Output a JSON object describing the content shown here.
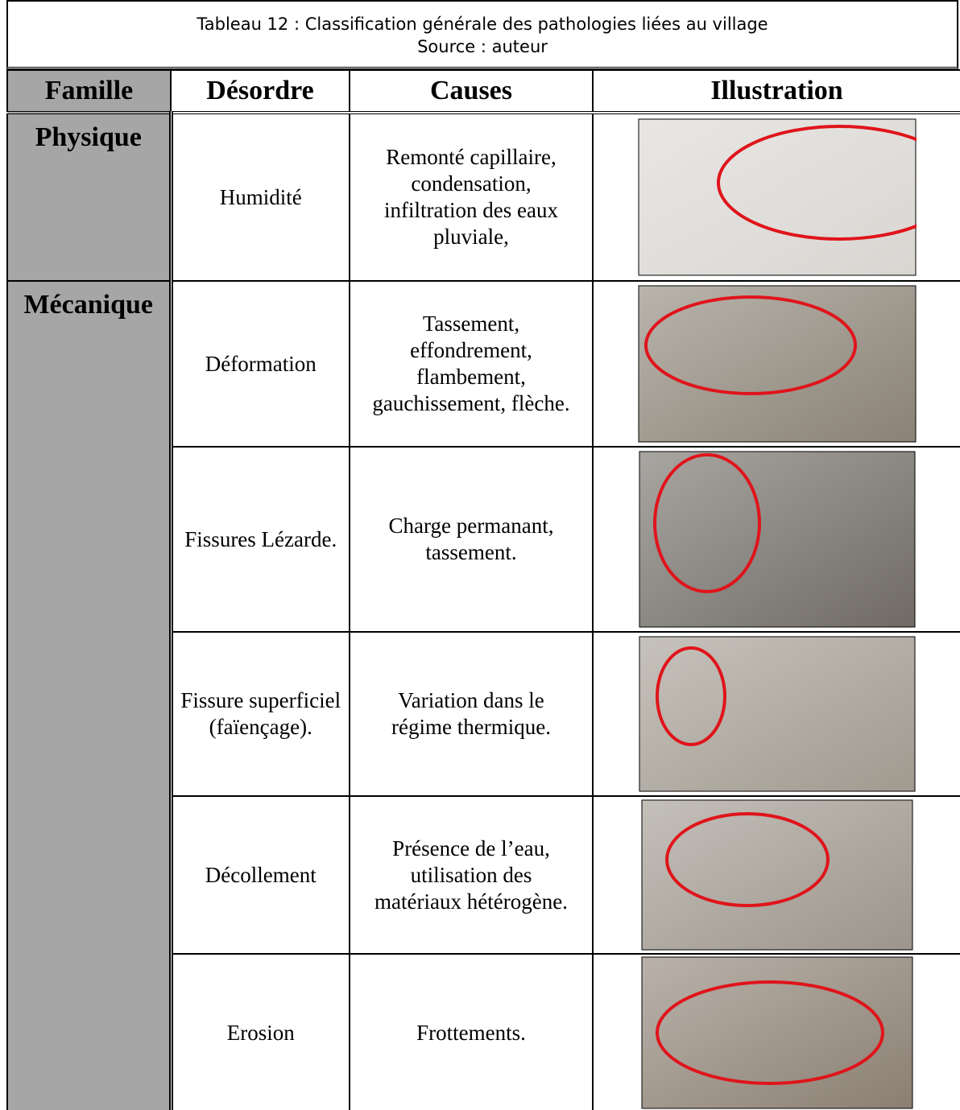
{
  "caption": {
    "title": "Tableau 12 :  Classification générale des pathologies liées au village",
    "source": "Source : auteur"
  },
  "header": [
    "Famille",
    "Désordre",
    "Causes",
    "Illustration"
  ],
  "families": [
    {
      "name": "Physique",
      "rows": [
        {
          "disorder": "Humidité",
          "causes": "Remonté capillaire, condensation, infiltration des eaux pluviale,"
        }
      ]
    },
    {
      "name": "Mécanique",
      "rows": [
        {
          "disorder": "Déformation",
          "causes": "Tassement, effondrement, flambement, gauchissement, flèche."
        },
        {
          "disorder": "Fissures Lézarde.",
          "causes": "Charge permanant, tassement."
        },
        {
          "disorder": "Fissure superficiel (faïençage).",
          "causes": "Variation dans le régime thermique."
        },
        {
          "disorder": "Décollement",
          "causes": "Présence de l’eau, utilisation des matériaux hétérogène."
        },
        {
          "disorder": "Erosion",
          "causes": "Frottements."
        }
      ]
    }
  ]
}
